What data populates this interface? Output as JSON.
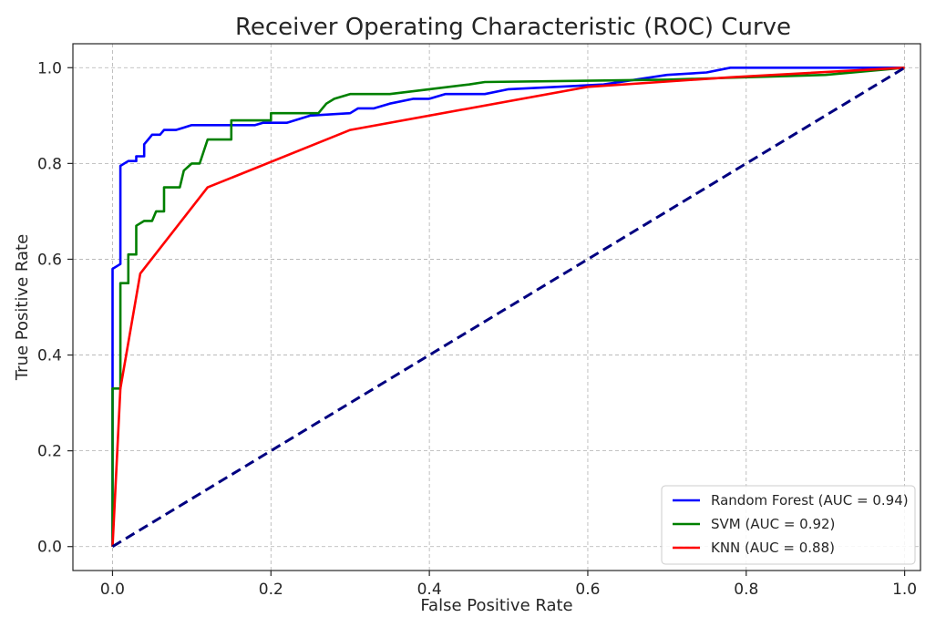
{
  "chart_data": {
    "type": "line",
    "title": "Receiver Operating Characteristic (ROC) Curve",
    "xlabel": "False Positive Rate",
    "ylabel": "True Positive Rate",
    "xlim": [
      -0.05,
      1.02
    ],
    "ylim": [
      -0.05,
      1.05
    ],
    "xticks": [
      0.0,
      0.2,
      0.4,
      0.6,
      0.8,
      1.0
    ],
    "yticks": [
      0.0,
      0.2,
      0.4,
      0.6,
      0.8,
      1.0
    ],
    "xtick_labels": [
      "0.0",
      "0.2",
      "0.4",
      "0.6",
      "0.8",
      "1.0"
    ],
    "ytick_labels": [
      "0.0",
      "0.2",
      "0.4",
      "0.6",
      "0.8",
      "1.0"
    ],
    "grid": true,
    "legend_position": "bottom-right",
    "series": [
      {
        "name": "Random Forest (AUC = 0.94)",
        "color": "#0000ff",
        "style": "solid",
        "x": [
          0.0,
          0.0,
          0.0,
          0.0,
          0.01,
          0.01,
          0.01,
          0.02,
          0.03,
          0.03,
          0.04,
          0.04,
          0.045,
          0.05,
          0.06,
          0.065,
          0.07,
          0.08,
          0.09,
          0.1,
          0.18,
          0.19,
          0.22,
          0.25,
          0.3,
          0.31,
          0.33,
          0.35,
          0.38,
          0.4,
          0.42,
          0.47,
          0.5,
          0.62,
          0.7,
          0.75,
          0.78,
          1.0
        ],
        "y": [
          0.0,
          0.33,
          0.58,
          0.58,
          0.59,
          0.68,
          0.795,
          0.805,
          0.805,
          0.815,
          0.815,
          0.84,
          0.85,
          0.86,
          0.86,
          0.87,
          0.87,
          0.87,
          0.875,
          0.88,
          0.88,
          0.885,
          0.885,
          0.9,
          0.905,
          0.915,
          0.915,
          0.925,
          0.935,
          0.935,
          0.945,
          0.945,
          0.955,
          0.965,
          0.985,
          0.99,
          1.0,
          1.0
        ]
      },
      {
        "name": "SVM (AUC = 0.92)",
        "color": "#008000",
        "style": "solid",
        "x": [
          0.0,
          0.0,
          0.01,
          0.01,
          0.02,
          0.02,
          0.03,
          0.03,
          0.04,
          0.05,
          0.055,
          0.065,
          0.065,
          0.07,
          0.085,
          0.09,
          0.1,
          0.11,
          0.12,
          0.15,
          0.15,
          0.2,
          0.2,
          0.26,
          0.27,
          0.28,
          0.3,
          0.35,
          0.4,
          0.45,
          0.47,
          0.7,
          0.9,
          1.0
        ],
        "y": [
          0.0,
          0.33,
          0.33,
          0.55,
          0.55,
          0.61,
          0.61,
          0.67,
          0.68,
          0.68,
          0.7,
          0.7,
          0.75,
          0.75,
          0.75,
          0.785,
          0.8,
          0.8,
          0.85,
          0.85,
          0.89,
          0.89,
          0.905,
          0.905,
          0.925,
          0.935,
          0.945,
          0.945,
          0.955,
          0.965,
          0.97,
          0.975,
          0.985,
          1.0
        ]
      },
      {
        "name": "KNN (AUC = 0.88)",
        "color": "#ff0000",
        "style": "solid",
        "x": [
          0.0,
          0.01,
          0.035,
          0.12,
          0.3,
          0.6,
          0.78,
          1.0
        ],
        "y": [
          0.0,
          0.33,
          0.57,
          0.75,
          0.87,
          0.96,
          0.98,
          1.0
        ]
      },
      {
        "name": "",
        "color": "#000080",
        "style": "dashed",
        "x": [
          0.0,
          1.0
        ],
        "y": [
          0.0,
          1.0
        ]
      }
    ]
  }
}
